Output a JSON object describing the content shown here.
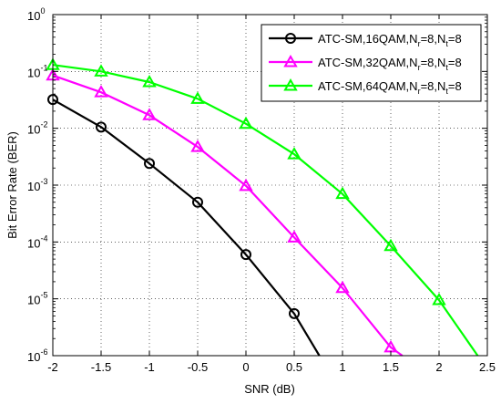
{
  "chart_data": {
    "type": "line",
    "xlabel": "SNR (dB)",
    "ylabel": "Bit Error Rate (BER)",
    "xlim": [
      -2,
      2.5
    ],
    "ylim": [
      1e-06,
      1
    ],
    "yscale": "log",
    "grid": true,
    "legend_position": "top-right",
    "x_ticks": [
      "-2",
      "-1.5",
      "-1",
      "-0.5",
      "0",
      "0.5",
      "1",
      "1.5",
      "2",
      "2.5"
    ],
    "y_ticks": [
      {
        "base": "10",
        "exp": "-6"
      },
      {
        "base": "10",
        "exp": "-5"
      },
      {
        "base": "10",
        "exp": "-4"
      },
      {
        "base": "10",
        "exp": "-3"
      },
      {
        "base": "10",
        "exp": "-2"
      },
      {
        "base": "10",
        "exp": "-1"
      },
      {
        "base": "10",
        "exp": "0"
      }
    ],
    "series": [
      {
        "legend": {
          "prefix": "ATC-SM,16QAM,N",
          "sub1": "r",
          "mid": "=8,N",
          "sub2": "t",
          "suffix": "=8"
        },
        "color": "#000000",
        "marker": "circle",
        "x": [
          -2,
          -1.5,
          -1,
          -0.5,
          0,
          0.5,
          0.76
        ],
        "y": [
          0.032,
          0.0105,
          0.0024,
          0.0005,
          6e-05,
          5.5e-06,
          1e-06
        ],
        "markers_at": [
          -2,
          -1.5,
          -1,
          -0.5,
          0,
          0.5
        ]
      },
      {
        "legend": {
          "prefix": "ATC-SM,32QAM,N",
          "sub1": "r",
          "mid": "=8,N",
          "sub2": "t",
          "suffix": "=8"
        },
        "color": "#ff00ff",
        "marker": "triangle",
        "x": [
          -2,
          -1.5,
          -1,
          -0.5,
          0,
          0.5,
          1,
          1.5,
          1.62
        ],
        "y": [
          0.085,
          0.043,
          0.017,
          0.0047,
          0.00097,
          0.00012,
          1.55e-05,
          1.4e-06,
          1e-06
        ],
        "markers_at": [
          -2,
          -1.5,
          -1,
          -0.5,
          0,
          0.5,
          1,
          1.5
        ]
      },
      {
        "legend": {
          "prefix": "ATC-SM,64QAM,N",
          "sub1": "r",
          "mid": "=8,N",
          "sub2": "t",
          "suffix": "=8"
        },
        "color": "#00ff00",
        "marker": "triangle",
        "x": [
          -2,
          -1.5,
          -1,
          -0.5,
          0,
          0.5,
          1,
          1.5,
          2,
          2.4
        ],
        "y": [
          0.13,
          0.1,
          0.065,
          0.033,
          0.012,
          0.0035,
          0.0007,
          8.5e-05,
          9.5e-06,
          1e-06
        ],
        "markers_at": [
          -2,
          -1.5,
          -1,
          -0.5,
          0,
          0.5,
          1,
          1.5,
          2
        ]
      }
    ]
  }
}
